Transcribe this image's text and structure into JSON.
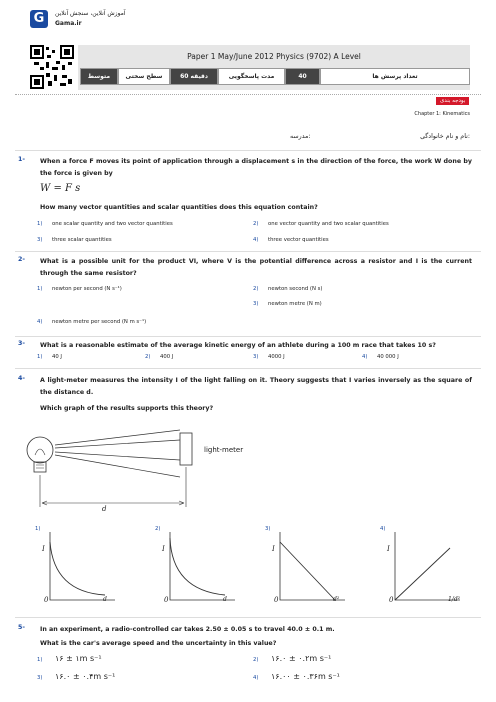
{
  "header": {
    "brand": "آموزش آنلاین، سنجش آنلاین",
    "site": "Gama.ir",
    "title": "Paper 1 May/June 2012 Physics (9702) A Level",
    "info": [
      {
        "label": "تعداد پرسش ها",
        "value": "40"
      },
      {
        "label": "مدت پاسخگویی",
        "value": "60 دقیقه"
      },
      {
        "label": "سطح سختی",
        "value": "متوسط"
      }
    ],
    "tag": "بودجه بندی",
    "chapter": "Chapter 1: Kinematics",
    "name_label": "نام و نام خانوادگی:",
    "school_label": "مدرسه:"
  },
  "questions": [
    {
      "number": "1-",
      "text": "When a force F moves its point of application through a displacement s in the direction of the force, the work W done by the force is given by",
      "formula": "W = F s",
      "prompt": "How many vector quantities and scalar quantities does this equation contain?",
      "options": [
        {
          "n": "1)",
          "text": "one scalar quantity and two vector quantities"
        },
        {
          "n": "2)",
          "text": "one vector quantity and two scalar quantities"
        },
        {
          "n": "3)",
          "text": "three scalar quantities"
        },
        {
          "n": "4)",
          "text": "three vector quantities"
        }
      ]
    },
    {
      "number": "2-",
      "text": "What is a possible unit for the product VI, where V is the potential difference across a resistor and I is the current through the same resistor?",
      "options": [
        {
          "n": "1)",
          "text": "newton per second (N s⁻¹)"
        },
        {
          "n": "2)",
          "text": "newton second (N s)"
        },
        {
          "n": "3)",
          "text": "newton metre (N m)"
        },
        {
          "n": "4)",
          "text": "newton metre per second (N m s⁻¹)"
        }
      ]
    },
    {
      "number": "3-",
      "text": "What is a reasonable estimate of the average kinetic energy of an athlete during a 100 m race that takes 10 s?",
      "options": [
        {
          "n": "1)",
          "text": "40 J"
        },
        {
          "n": "2)",
          "text": "400 J"
        },
        {
          "n": "3)",
          "text": "4000 J"
        },
        {
          "n": "4)",
          "text": "40 000 J"
        }
      ]
    },
    {
      "number": "4-",
      "text": "A light-meter measures the intensity I of the light falling on it. Theory suggests that I varies inversely as the square of the distance d.",
      "prompt": "Which graph of the results supports this theory?",
      "diagram": {
        "meter": "light-meter",
        "distance": "d"
      },
      "options": [
        {
          "n": "1)",
          "y": "I",
          "origin": "0",
          "x": "d"
        },
        {
          "n": "2)",
          "y": "I",
          "origin": "0",
          "x": "d"
        },
        {
          "n": "3)",
          "y": "I",
          "origin": "0",
          "x": "d²"
        },
        {
          "n": "4)",
          "y": "I",
          "origin": "0",
          "x": "1/d²"
        }
      ]
    },
    {
      "number": "5-",
      "text": "In an experiment, a radio-controlled car takes 2.50 ± 0.05 s to travel 40.0 ± 0.1 m.",
      "prompt": "What is the car's average speed and the uncertainty in this value?",
      "options": [
        {
          "n": "1)",
          "text": "۱۶ ± ۱m s⁻¹"
        },
        {
          "n": "2)",
          "text": "۱۶.۰ ± ۰.۲m s⁻¹"
        },
        {
          "n": "3)",
          "text": "۱۶.۰ ± ۰.۴m s⁻¹"
        },
        {
          "n": "4)",
          "text": "۱۶.۰۰ ± ۰.۳۶m s⁻¹"
        }
      ]
    }
  ]
}
